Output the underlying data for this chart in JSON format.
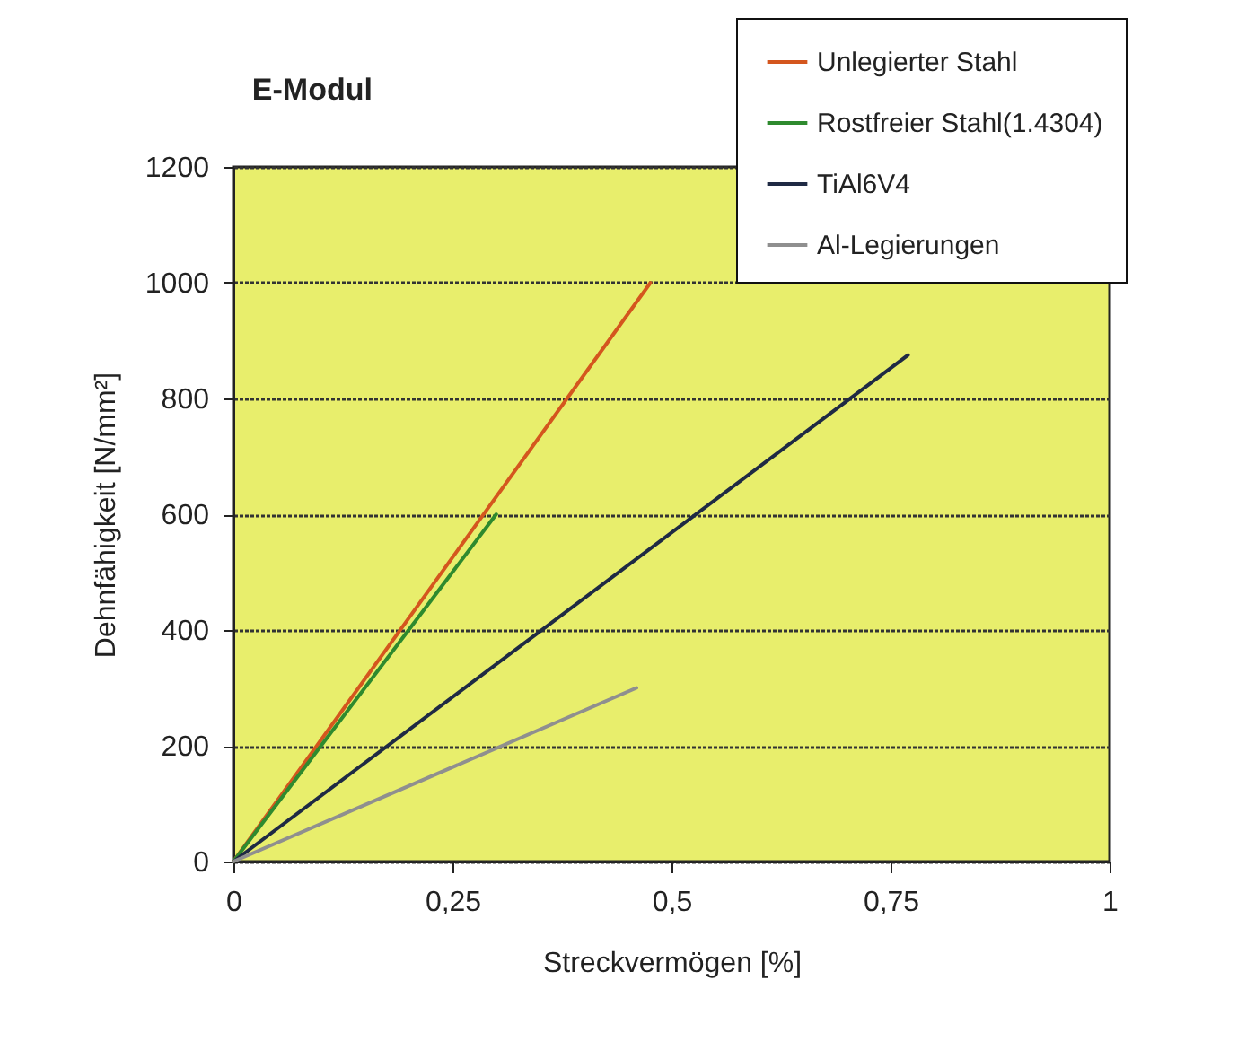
{
  "chart_data": {
    "type": "line",
    "title": "E-Modul",
    "xlabel": "Streckvermögen [%]",
    "ylabel": "Dehnfähigkeit  [N/mm²]",
    "series": [
      {
        "name": "Unlegierter Stahl",
        "color": "#d4561e",
        "x": [
          0,
          0.476
        ],
        "values": [
          0,
          1000
        ]
      },
      {
        "name": "Rostfreier Stahl(1.4304)",
        "color": "#2e8a2e",
        "x": [
          0,
          0.3
        ],
        "values": [
          0,
          600
        ]
      },
      {
        "name": "TiAl6V4",
        "color": "#1f2a44",
        "x": [
          0,
          0.77
        ],
        "values": [
          0,
          875
        ]
      },
      {
        "name": "Al-Legierungen",
        "color": "#8f8f8f",
        "x": [
          0,
          0.46
        ],
        "values": [
          0,
          300
        ]
      }
    ],
    "xlim": [
      0,
      1
    ],
    "ylim": [
      0,
      1200
    ],
    "xticks": [
      0,
      {
        "value": 0.25,
        "label": "0,25"
      },
      {
        "value": 0.5,
        "label": "0,5"
      },
      {
        "value": 0.75,
        "label": "0,75"
      },
      1
    ],
    "yticks": [
      0,
      200,
      400,
      600,
      800,
      1000,
      1200
    ],
    "grid": "y",
    "legend": "top right"
  }
}
